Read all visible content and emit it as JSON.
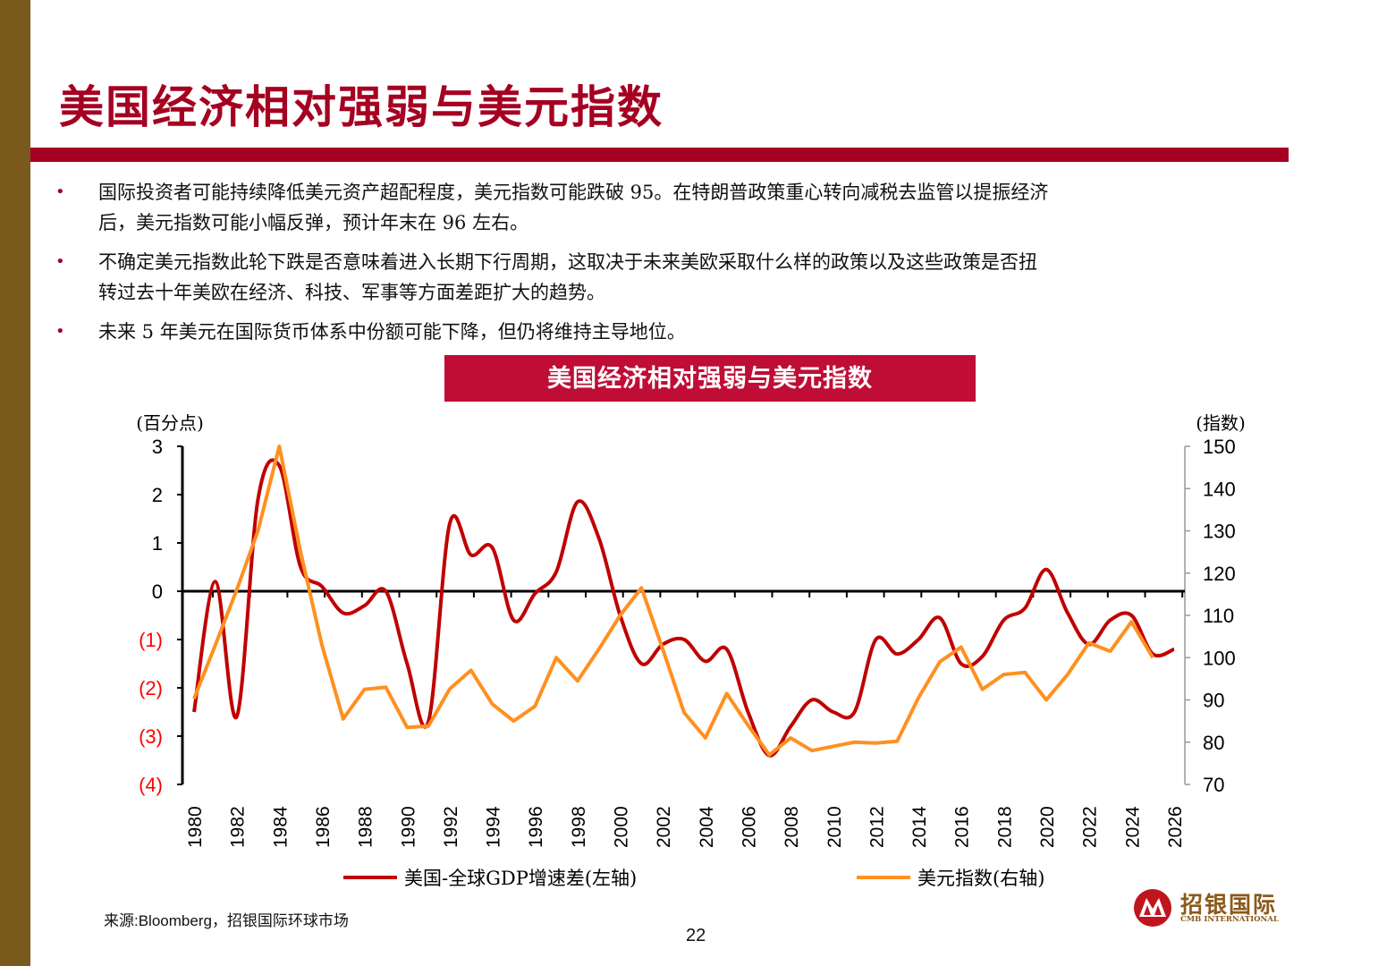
{
  "slide": {
    "title": "美国经济相对强弱与美元指数",
    "bullets": [
      {
        "lines": [
          "国际投资者可能持续降低美元资产超配程度，美元指数可能跌破 95。在特朗普政策重心转向减税去监管以提振经济",
          "后，美元指数可能小幅反弹，预计年末在 96 左右。"
        ]
      },
      {
        "lines": [
          "不确定美元指数此轮下跌是否意味着进入长期下行周期，这取决于未来美欧采取什么样的政策以及这些政策是否扭",
          "转过去十年美欧在经济、科技、军事等方面差距扩大的趋势。"
        ]
      },
      {
        "lines": [
          "未来 5 年美元在国际货币体系中份额可能下降，但仍将维持主导地位。"
        ]
      }
    ],
    "bullet_marker": "•",
    "source": "来源:Bloomberg，招银国际环球市场",
    "page_number": "22",
    "logo": {
      "cn": "招银国际",
      "en": "CMB INTERNATIONAL"
    },
    "colors": {
      "brand_red": "#a50021",
      "side_bar": "#7a5a1c",
      "banner": "#c00d35"
    }
  },
  "chart_data": {
    "type": "line",
    "title": "美国经济相对强弱与美元指数",
    "left_axis": {
      "label": "(百分点)",
      "ylim": [
        -4,
        3
      ],
      "ticks": [
        "3",
        "2",
        "1",
        "0",
        "(1)",
        "(2)",
        "(3)",
        "(4)"
      ],
      "tick_values": [
        3,
        2,
        1,
        0,
        -1,
        -2,
        -3,
        -4
      ],
      "negative_color": "#ff0000"
    },
    "right_axis": {
      "label": "(指数)",
      "ylim": [
        70,
        150
      ],
      "ticks": [
        "150",
        "140",
        "130",
        "120",
        "110",
        "100",
        "90",
        "80",
        "70"
      ],
      "tick_values": [
        150,
        140,
        130,
        120,
        110,
        100,
        90,
        80,
        70
      ]
    },
    "x_tick_labels": [
      "1980",
      "1982",
      "1984",
      "1986",
      "1988",
      "1990",
      "1992",
      "1994",
      "1996",
      "1998",
      "2000",
      "2002",
      "2004",
      "2006",
      "2008",
      "2010",
      "2012",
      "2014",
      "2016",
      "2018",
      "2020",
      "2022",
      "2024",
      "2026"
    ],
    "x": [
      1980,
      1981,
      1982,
      1983,
      1984,
      1985,
      1986,
      1987,
      1988,
      1989,
      1990,
      1991,
      1992,
      1993,
      1994,
      1995,
      1996,
      1997,
      1998,
      1999,
      2000,
      2001,
      2002,
      2003,
      2004,
      2005,
      2006,
      2007,
      2008,
      2009,
      2010,
      2011,
      2012,
      2013,
      2014,
      2015,
      2016,
      2017,
      2018,
      2019,
      2020,
      2021,
      2022,
      2023,
      2024,
      2025,
      2026
    ],
    "series": [
      {
        "name": "美国-全球GDP增速差(左轴)",
        "axis": "left",
        "color": "#c00000",
        "smooth": true,
        "values": [
          -2.5,
          0.2,
          -2.6,
          1.9,
          2.6,
          0.5,
          0.1,
          -0.45,
          -0.3,
          0,
          -1.5,
          -2.7,
          1.4,
          0.75,
          0.9,
          -0.6,
          -0.05,
          0.4,
          1.85,
          1.1,
          -0.5,
          -1.5,
          -1.1,
          -1.0,
          -1.45,
          -1.2,
          -2.5,
          -3.4,
          -2.8,
          -2.25,
          -2.5,
          -2.5,
          -1.0,
          -1.3,
          -1.0,
          -0.55,
          -1.5,
          -1.35,
          -0.6,
          -0.35,
          0.45,
          -0.45,
          -1.1,
          -0.6,
          -0.5,
          -1.3,
          -1.2
        ]
      },
      {
        "name": "美元指数(右轴)",
        "axis": "right",
        "color": "#ff9020",
        "smooth": false,
        "values": [
          90.3,
          103,
          116,
          130,
          150,
          125,
          103,
          85.5,
          92.5,
          93,
          83.5,
          83.8,
          92.6,
          97,
          89,
          85,
          88.5,
          100,
          94.5,
          102,
          110,
          116.5,
          102,
          87,
          81,
          91.5,
          84,
          77,
          81,
          78,
          79,
          80,
          79.8,
          80.2,
          90.5,
          99,
          102.5,
          92.5,
          96,
          96.5,
          90,
          96,
          103.5,
          101.5,
          108.5,
          100,
          null
        ]
      }
    ],
    "legend_position": "bottom",
    "grid": false
  }
}
